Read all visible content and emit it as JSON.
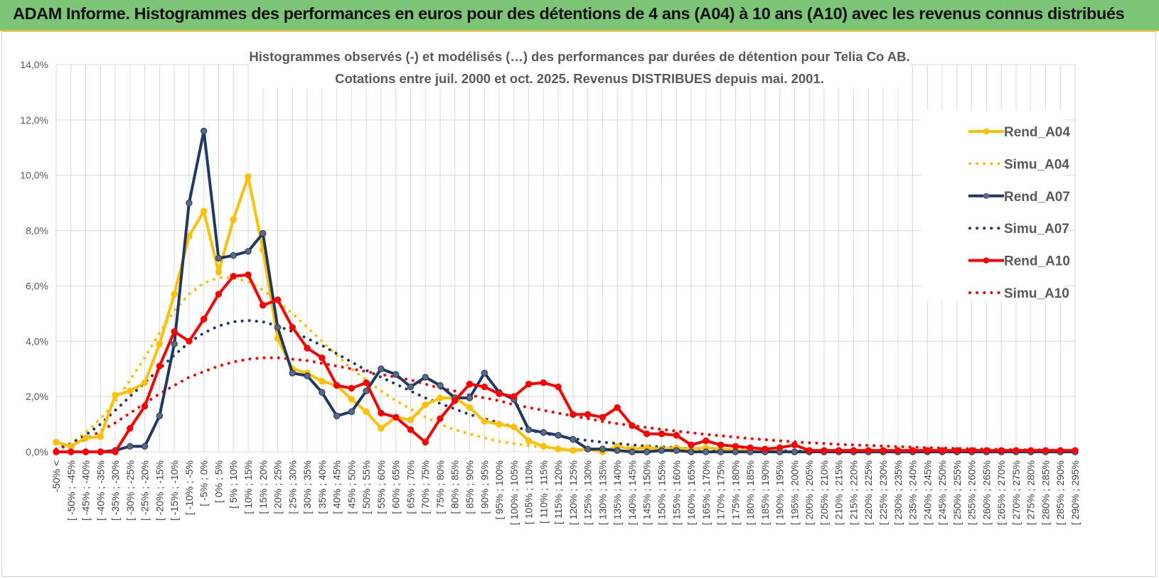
{
  "banner": {
    "title": "ADAM Informe. Histogrammes des performances en euros pour des détentions de 4 ans (A04) à 10 ans (A10) avec les revenus connus distribués"
  },
  "colors": {
    "banner_bg": "#7cc576",
    "gold": "#ffc000",
    "navy": "#1f3864",
    "red": "#ff0000",
    "grid": "#d9d9d9"
  },
  "chart_data": {
    "type": "line",
    "title": "Histogrammes observés (-) et modélisés (…) des performances par durées de détention pour Telia Co AB.",
    "subtitle": "Cotations entre juil. 2000 et oct. 2025. Revenus DISTRIBUES depuis mai. 2001.",
    "ylim": [
      0,
      14
    ],
    "y_ticks": [
      "0,0%",
      "2,0%",
      "4,0%",
      "6,0%",
      "8,0%",
      "10,0%",
      "12,0%",
      "14,0%"
    ],
    "grid": true,
    "legend_position": "right",
    "categories": [
      "-50% <",
      "[ -50% ; -45%",
      "[ -45% ; -40%",
      "[ -40% ; -35%",
      "[ -35% ; -30%",
      "[ -30% ; -25%",
      "[ -25% ; -20%",
      "[ -20% ; -15%",
      "[ -15% ; -10%",
      "[ -10% ; -5%",
      "[ -5% ; 0%",
      "[ 0% ; 5%",
      "[ 5% ; 10%",
      "[ 10% ; 15%",
      "[ 15% ; 20%",
      "[ 20% ; 25%",
      "[ 25% ; 30%",
      "[ 30% ; 35%",
      "[ 35% ; 40%",
      "[ 40% ; 45%",
      "[ 45% ; 50%",
      "[ 50% ; 55%",
      "[ 55% ; 60%",
      "[ 60% ; 65%",
      "[ 65% ; 70%",
      "[ 70% ; 75%",
      "[ 75% ; 80%",
      "[ 80% ; 85%",
      "[ 85% ; 90%",
      "[ 90% ; 95%",
      "[ 95% ; 100%",
      "[ 100% ; 105%",
      "[ 105% ; 110%",
      "[ 110% ; 115%",
      "[ 115% ; 120%",
      "[ 120% ; 125%",
      "[ 125% ; 130%",
      "[ 130% ; 135%",
      "[ 135% ; 140%",
      "[ 140% ; 145%",
      "[ 145% ; 150%",
      "[ 150% ; 155%",
      "[ 155% ; 160%",
      "[ 160% ; 165%",
      "[ 165% ; 170%",
      "[ 170% ; 175%",
      "[ 175% ; 180%",
      "[ 180% ; 185%",
      "[ 185% ; 190%",
      "[ 190% ; 195%",
      "[ 195% ; 200%",
      "[ 200% ; 205%",
      "[ 205% ; 210%",
      "[ 210% ; 215%",
      "[ 215% ; 220%",
      "[ 220% ; 225%",
      "[ 225% ; 230%",
      "[ 230% ; 235%",
      "[ 235% ; 240%",
      "[ 240% ; 245%",
      "[ 245% ; 250%",
      "[ 250% ; 255%",
      "[ 255% ; 260%",
      "[ 260% ; 265%",
      "[ 265% ; 270%",
      "[ 270% ; 275%",
      "[ 275% ; 280%",
      "[ 280% ; 285%",
      "[ 285% ; 290%",
      "[ 290% ; 295%"
    ],
    "series": [
      {
        "name": "Rend_A04",
        "style": "solid",
        "marker": true,
        "color": "#ffc000",
        "values": [
          0.35,
          0.2,
          0.5,
          0.55,
          2.05,
          2.2,
          2.5,
          3.9,
          5.7,
          7.8,
          8.7,
          6.5,
          8.4,
          9.95,
          7.3,
          4.1,
          3.0,
          2.85,
          2.55,
          2.4,
          1.9,
          1.45,
          0.85,
          1.25,
          1.15,
          1.7,
          1.95,
          1.95,
          1.6,
          1.1,
          1.0,
          0.9,
          0.4,
          0.2,
          0.1,
          0.05,
          0.1,
          0.0,
          0.2,
          0.1,
          0.15,
          0.1,
          0.15,
          0.1,
          0.15,
          0.1,
          0.05,
          0.05,
          0.05,
          0.0,
          0.0,
          0.0,
          0.0,
          0.0,
          0.0,
          0.0,
          0.0,
          0.0,
          0.0,
          0.0,
          0.0,
          0.0,
          0.0,
          0.0,
          0.0,
          0.0,
          0.0,
          0.0,
          0.0,
          0.0
        ]
      },
      {
        "name": "Simu_A04",
        "style": "dotted",
        "marker": false,
        "color": "#ffc000",
        "values": [
          0.1,
          0.3,
          0.7,
          1.2,
          1.8,
          2.6,
          3.4,
          4.3,
          5.1,
          5.7,
          6.1,
          6.3,
          6.3,
          6.15,
          5.85,
          5.45,
          5.0,
          4.5,
          4.0,
          3.5,
          3.0,
          2.6,
          2.2,
          1.85,
          1.55,
          1.25,
          1.0,
          0.8,
          0.65,
          0.5,
          0.38,
          0.3,
          0.22,
          0.17,
          0.12,
          0.09,
          0.07,
          0.05,
          0.04,
          0.03,
          0.02,
          0.02,
          0.01,
          0.01,
          0.01,
          0.01,
          0.0,
          0.0,
          0.0,
          0.0,
          0.0,
          0.0,
          0.0,
          0.0,
          0.0,
          0.0,
          0.0,
          0.0,
          0.0,
          0.0,
          0.0,
          0.0,
          0.0,
          0.0,
          0.0,
          0.0,
          0.0,
          0.0,
          0.0,
          0.0
        ]
      },
      {
        "name": "Rend_A07",
        "style": "solid",
        "marker": true,
        "color": "#1f3864",
        "values": [
          0.0,
          0.0,
          0.0,
          0.0,
          0.05,
          0.2,
          0.2,
          1.3,
          3.9,
          9.0,
          11.6,
          7.0,
          7.1,
          7.25,
          7.9,
          4.5,
          2.85,
          2.75,
          2.15,
          1.3,
          1.45,
          2.2,
          3.0,
          2.8,
          2.35,
          2.7,
          2.4,
          1.95,
          1.95,
          2.85,
          2.15,
          1.9,
          0.8,
          0.7,
          0.6,
          0.45,
          0.1,
          0.1,
          0.05,
          0.0,
          0.0,
          0.05,
          0.05,
          0.0,
          0.0,
          0.0,
          0.0,
          0.0,
          0.0,
          0.0,
          0.0,
          0.0,
          0.0,
          0.0,
          0.0,
          0.0,
          0.0,
          0.0,
          0.0,
          0.0,
          0.0,
          0.0,
          0.0,
          0.0,
          0.0,
          0.0,
          0.0,
          0.0,
          0.0,
          0.0
        ]
      },
      {
        "name": "Simu_A07",
        "style": "dotted",
        "marker": false,
        "color": "#1f3864",
        "values": [
          0.1,
          0.3,
          0.6,
          1.0,
          1.5,
          2.0,
          2.5,
          3.0,
          3.5,
          3.95,
          4.3,
          4.55,
          4.7,
          4.75,
          4.7,
          4.55,
          4.35,
          4.1,
          3.85,
          3.55,
          3.25,
          2.95,
          2.7,
          2.45,
          2.2,
          1.95,
          1.75,
          1.55,
          1.35,
          1.2,
          1.05,
          0.9,
          0.78,
          0.67,
          0.57,
          0.48,
          0.41,
          0.35,
          0.3,
          0.25,
          0.21,
          0.18,
          0.15,
          0.12,
          0.1,
          0.08,
          0.07,
          0.06,
          0.05,
          0.04,
          0.03,
          0.03,
          0.02,
          0.02,
          0.02,
          0.01,
          0.01,
          0.01,
          0.01,
          0.01,
          0.0,
          0.0,
          0.0,
          0.0,
          0.0,
          0.0,
          0.0,
          0.0,
          0.0,
          0.0
        ]
      },
      {
        "name": "Rend_A10",
        "style": "solid",
        "marker": true,
        "color": "#ff0000",
        "values": [
          0.0,
          0.0,
          0.0,
          0.0,
          0.0,
          0.85,
          1.65,
          3.1,
          4.35,
          4.0,
          4.8,
          5.7,
          6.35,
          6.4,
          5.3,
          5.5,
          4.5,
          3.75,
          3.4,
          2.4,
          2.3,
          2.5,
          1.4,
          1.25,
          0.8,
          0.35,
          1.2,
          1.85,
          2.45,
          2.35,
          2.1,
          2.0,
          2.45,
          2.5,
          2.35,
          1.35,
          1.35,
          1.25,
          1.6,
          0.95,
          0.65,
          0.65,
          0.6,
          0.25,
          0.4,
          0.25,
          0.2,
          0.15,
          0.1,
          0.15,
          0.25,
          0.05,
          0.05,
          0.05,
          0.05,
          0.05,
          0.05,
          0.05,
          0.05,
          0.05,
          0.05,
          0.05,
          0.05,
          0.05,
          0.05,
          0.05,
          0.05,
          0.05,
          0.05,
          0.05
        ]
      },
      {
        "name": "Simu_A10",
        "style": "dotted",
        "marker": false,
        "color": "#ff0000",
        "values": [
          0.1,
          0.25,
          0.45,
          0.75,
          1.05,
          1.4,
          1.75,
          2.1,
          2.4,
          2.7,
          2.9,
          3.1,
          3.25,
          3.35,
          3.4,
          3.4,
          3.35,
          3.3,
          3.2,
          3.1,
          3.0,
          2.9,
          2.8,
          2.7,
          2.6,
          2.45,
          2.3,
          2.2,
          2.05,
          1.95,
          1.85,
          1.7,
          1.6,
          1.5,
          1.4,
          1.3,
          1.2,
          1.1,
          1.02,
          0.95,
          0.88,
          0.81,
          0.75,
          0.69,
          0.63,
          0.58,
          0.53,
          0.48,
          0.44,
          0.4,
          0.36,
          0.33,
          0.3,
          0.27,
          0.25,
          0.23,
          0.21,
          0.19,
          0.17,
          0.15,
          0.14,
          0.12,
          0.11,
          0.1,
          0.09,
          0.08,
          0.07,
          0.07,
          0.06,
          0.06
        ]
      }
    ]
  }
}
